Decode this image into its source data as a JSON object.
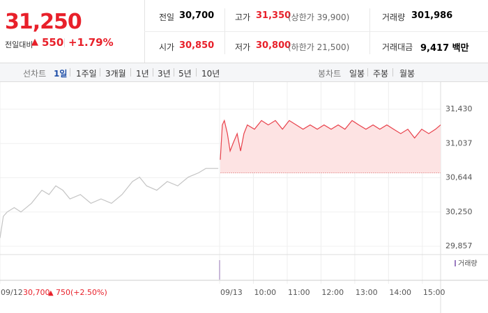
{
  "header": {
    "price": "31,250",
    "change_label": "전일대비",
    "change": "550",
    "change_pct": "+1.79%"
  },
  "stats": [
    {
      "label": "전일",
      "value": "30,700"
    },
    {
      "label": "고가",
      "value": "31,350",
      "extra": "(상한가 39,900)"
    },
    {
      "label": "거래량",
      "value": "301,986"
    },
    {
      "label": "시가",
      "value": "30,850"
    },
    {
      "label": "저가",
      "value": "30,800",
      "extra": "(하한가 21,500)"
    },
    {
      "label": "거래대금",
      "value": "9,417 백만"
    }
  ],
  "tabs": {
    "line_label": "선차트",
    "line_items": [
      "1일",
      "1주일",
      "3개월",
      "1년",
      "3년",
      "5년",
      "10년"
    ],
    "candle_label": "봉차트",
    "candle_items": [
      "일봉",
      "주봉",
      "월봉"
    ]
  },
  "prev_day_info": {
    "close": "30,700",
    "change": "750",
    "change_pct": "(+2.50%)"
  },
  "volume_label": "거래량",
  "chart_data": {
    "type": "line",
    "xlim": [
      2.5,
      15.54
    ],
    "ylim": [
      29745,
      31686
    ],
    "yticks": [
      {
        "value": 31430,
        "label": "31,430"
      },
      {
        "value": 31037,
        "label": "31,037"
      },
      {
        "value": 30644,
        "label": "30,644"
      },
      {
        "value": 30250,
        "label": "30,250"
      },
      {
        "value": 29857,
        "label": "29,857"
      }
    ],
    "xticks": [
      {
        "value": 2.5,
        "label": "09/12"
      },
      {
        "value": 9,
        "label": "09/13"
      },
      {
        "value": 10,
        "label": "10:00"
      },
      {
        "value": 11,
        "label": "11:00"
      },
      {
        "value": 12,
        "label": "12:00"
      },
      {
        "value": 13,
        "label": "13:00"
      },
      {
        "value": 14,
        "label": "14:00"
      },
      {
        "value": 15,
        "label": "15:00"
      }
    ],
    "baseline": 30700,
    "grid": true,
    "series": [
      {
        "color": "#c4c4c4",
        "x": [
          2.5,
          2.6,
          2.71,
          2.92,
          3.12,
          3.43,
          3.74,
          3.95,
          4.15,
          4.36,
          4.57,
          4.88,
          5.19,
          5.49,
          5.8,
          6.11,
          6.42,
          6.63,
          6.84,
          7.14,
          7.45,
          7.76,
          8.07,
          8.38,
          8.59,
          8.79,
          8.96
        ],
        "values": [
          29950,
          30200,
          30250,
          30300,
          30250,
          30350,
          30500,
          30450,
          30550,
          30500,
          30400,
          30450,
          30350,
          30400,
          30350,
          30450,
          30600,
          30650,
          30550,
          30500,
          30600,
          30550,
          30650,
          30700,
          30750,
          30750,
          30750
        ]
      },
      {
        "color": "#e8404a",
        "fill": "#fde3e3",
        "x": [
          9.02,
          9.08,
          9.14,
          9.23,
          9.31,
          9.41,
          9.52,
          9.62,
          9.72,
          9.82,
          10.03,
          10.24,
          10.44,
          10.65,
          10.86,
          11.06,
          11.27,
          11.47,
          11.68,
          11.89,
          12.09,
          12.3,
          12.51,
          12.71,
          12.92,
          13.12,
          13.33,
          13.54,
          13.74,
          13.95,
          14.15,
          14.36,
          14.57,
          14.77,
          14.98,
          15.19,
          15.39,
          15.54
        ],
        "values": [
          30850,
          31250,
          31300,
          31150,
          30950,
          31050,
          31150,
          30950,
          31150,
          31250,
          31200,
          31300,
          31250,
          31300,
          31200,
          31300,
          31250,
          31200,
          31250,
          31200,
          31250,
          31200,
          31250,
          31200,
          31300,
          31250,
          31200,
          31250,
          31200,
          31250,
          31200,
          31150,
          31200,
          31100,
          31200,
          31150,
          31200,
          31250
        ]
      }
    ]
  }
}
